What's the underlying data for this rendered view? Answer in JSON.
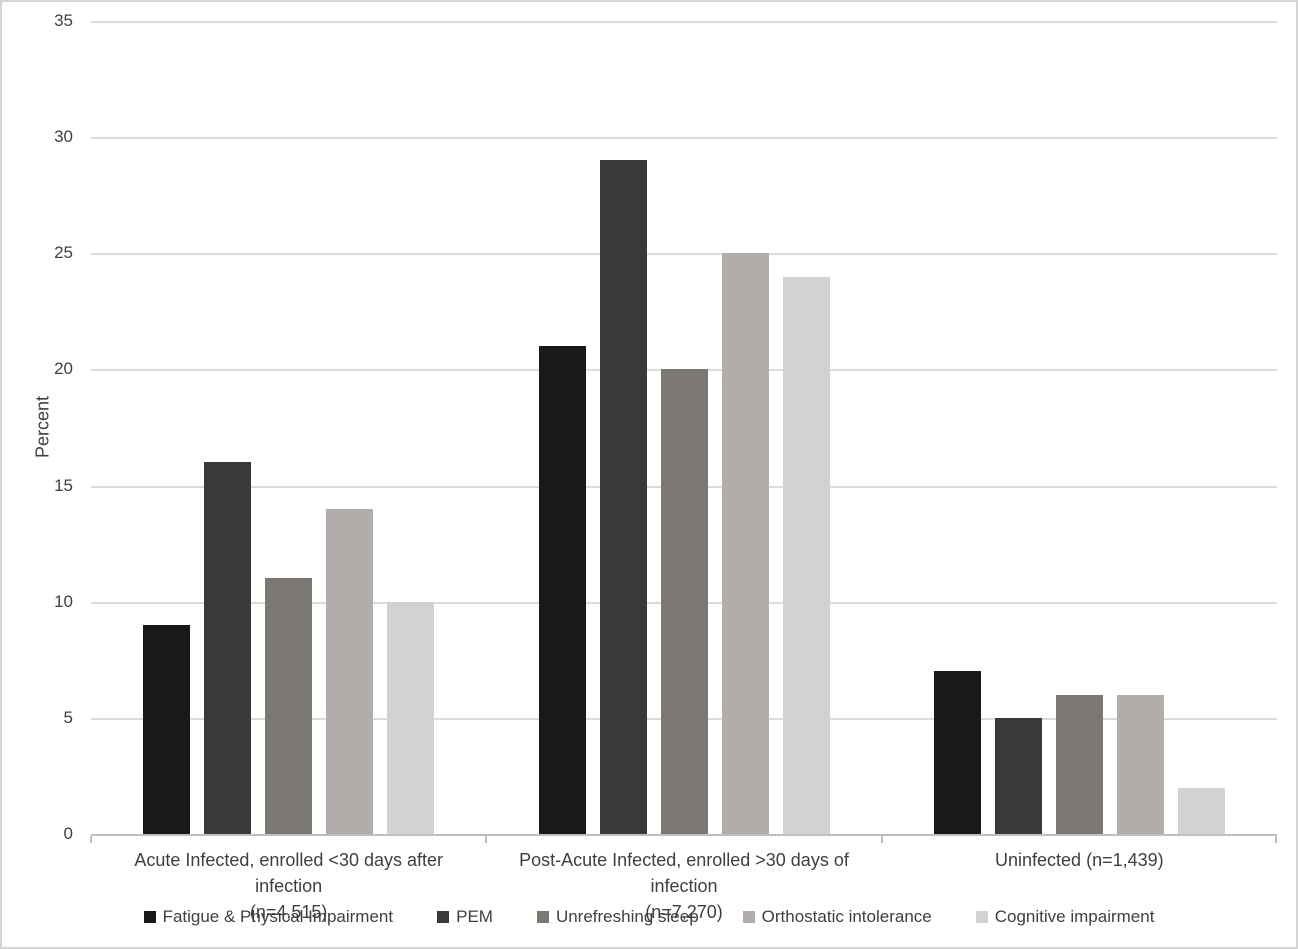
{
  "figure": {
    "background": "#ffffff",
    "border_color": "#d4d4d4",
    "text_color": "#3f3f3f"
  },
  "chart_data": {
    "type": "bar",
    "title": "",
    "xlabel": "",
    "ylabel": "Percent",
    "ylim": [
      0,
      35
    ],
    "y_ticks": [
      0,
      5,
      10,
      15,
      20,
      25,
      30,
      35
    ],
    "grid": true,
    "gridline_color": "#dcdcdc",
    "axis_color": "#bfbfbf",
    "legend_position": "bottom",
    "categories": [
      {
        "label_lines": [
          "Acute Infected, enrolled <30 days after infection",
          "(n=4,515)"
        ]
      },
      {
        "label_lines": [
          "Post-Acute Infected, enrolled >30 days of infection",
          "(n=7,270)"
        ]
      },
      {
        "label_lines": [
          "Uninfected (n=1,439)"
        ]
      }
    ],
    "series": [
      {
        "name": "Fatigue & Physical Impairment",
        "color": "#19181a",
        "values": [
          9,
          21,
          7
        ]
      },
      {
        "name": "PEM",
        "color": "#3a3937",
        "values": [
          16,
          29,
          5
        ]
      },
      {
        "name": "Unrefreshing sleep",
        "color": "#7b7874",
        "values": [
          11,
          20,
          6
        ]
      },
      {
        "name": "Orthostatic intolerance",
        "color": "#b2adaa",
        "values": [
          14,
          25,
          6
        ]
      },
      {
        "name": "Cognitive impairment",
        "color": "#d4d2d0",
        "values": [
          10,
          24,
          2
        ]
      }
    ]
  }
}
